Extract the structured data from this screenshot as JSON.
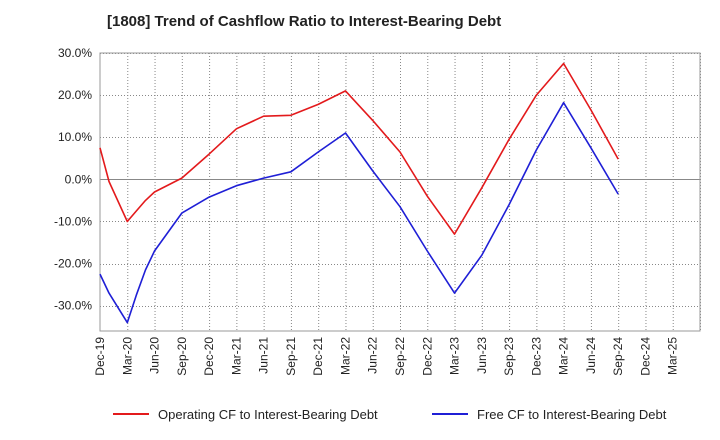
{
  "chart_data": {
    "type": "line",
    "title": "[1808]  Trend of Cashflow Ratio to Interest-Bearing Debt",
    "xlabel": "",
    "ylabel": "",
    "categories": [
      "Dec-19",
      "Mar-20",
      "Jun-20",
      "Sep-20",
      "Dec-20",
      "Mar-21",
      "Jun-21",
      "Sep-21",
      "Dec-21",
      "Mar-22",
      "Jun-22",
      "Sep-22",
      "Dec-22",
      "Mar-23",
      "Jun-23",
      "Sep-23",
      "Dec-23",
      "Mar-24",
      "Jun-24",
      "Sep-24",
      "Dec-24",
      "Mar-25"
    ],
    "x_ticks": [
      "Dec-19",
      "Mar-20",
      "Jun-20",
      "Sep-20",
      "Dec-20",
      "Mar-21",
      "Jun-21",
      "Sep-21",
      "Dec-21",
      "Mar-22",
      "Jun-22",
      "Sep-22",
      "Dec-22",
      "Mar-23",
      "Jun-23",
      "Sep-23",
      "Dec-23",
      "Mar-24",
      "Jun-24",
      "Sep-24",
      "Dec-24",
      "Mar-25"
    ],
    "ylim": [
      -36,
      30
    ],
    "y_ticks": [
      30,
      20,
      10,
      0,
      -10,
      -20,
      -30
    ],
    "y_tick_labels": [
      "30.0%",
      "20.0%",
      "10.0%",
      "0.0%",
      "-10.0%",
      "-20.0%",
      "-30.0%"
    ],
    "grid": true,
    "legend_position": "bottom",
    "series": [
      {
        "name": "Operating CF to Interest-Bearing Debt",
        "color": "#e31a1c",
        "points": [
          {
            "x": 0,
            "y": 7.5
          },
          {
            "x": 0.33,
            "y": -0.5
          },
          {
            "x": 1,
            "y": -10.0
          },
          {
            "x": 1.33,
            "y": -7.5
          },
          {
            "x": 1.67,
            "y": -5.0
          },
          {
            "x": 2,
            "y": -3.0
          },
          {
            "x": 3,
            "y": 0.3
          },
          {
            "x": 4,
            "y": 6.0
          },
          {
            "x": 5,
            "y": 12.0
          },
          {
            "x": 6,
            "y": 15.0
          },
          {
            "x": 7,
            "y": 15.2
          },
          {
            "x": 8,
            "y": 17.8
          },
          {
            "x": 9,
            "y": 21.0
          },
          {
            "x": 10,
            "y": 14.0
          },
          {
            "x": 11,
            "y": 6.5
          },
          {
            "x": 12,
            "y": -4.0
          },
          {
            "x": 13,
            "y": -13.0
          },
          {
            "x": 14,
            "y": -2.0
          },
          {
            "x": 15,
            "y": 9.5
          },
          {
            "x": 16,
            "y": 20.0
          },
          {
            "x": 17,
            "y": 27.5
          },
          {
            "x": 18,
            "y": 16.5
          },
          {
            "x": 19,
            "y": 4.8
          }
        ]
      },
      {
        "name": "Free CF to Interest-Bearing Debt",
        "color": "#1f1fd6",
        "points": [
          {
            "x": 0,
            "y": -22.5
          },
          {
            "x": 0.33,
            "y": -27.0
          },
          {
            "x": 1,
            "y": -34.0
          },
          {
            "x": 1.33,
            "y": -27.5
          },
          {
            "x": 1.67,
            "y": -21.5
          },
          {
            "x": 2,
            "y": -17.0
          },
          {
            "x": 3,
            "y": -8.0
          },
          {
            "x": 4,
            "y": -4.2
          },
          {
            "x": 5,
            "y": -1.5
          },
          {
            "x": 6,
            "y": 0.3
          },
          {
            "x": 7,
            "y": 1.8
          },
          {
            "x": 8,
            "y": 6.5
          },
          {
            "x": 9,
            "y": 11.0
          },
          {
            "x": 10,
            "y": 2.0
          },
          {
            "x": 11,
            "y": -6.5
          },
          {
            "x": 12,
            "y": -17.0
          },
          {
            "x": 13,
            "y": -27.0
          },
          {
            "x": 14,
            "y": -18.0
          },
          {
            "x": 15,
            "y": -6.0
          },
          {
            "x": 16,
            "y": 7.0
          },
          {
            "x": 17,
            "y": 18.2
          },
          {
            "x": 18,
            "y": 7.5
          },
          {
            "x": 19,
            "y": -3.5
          }
        ]
      }
    ]
  }
}
